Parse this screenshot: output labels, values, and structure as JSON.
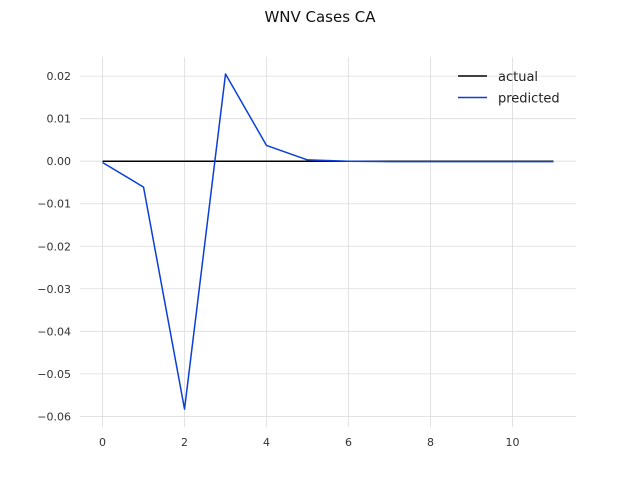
{
  "chart_data": {
    "type": "line",
    "title": "WNV Cases CA",
    "xlabel": "",
    "ylabel": "",
    "xlim": [
      -0.55,
      11.55
    ],
    "ylim": [
      -0.0625,
      0.0245
    ],
    "grid": true,
    "legend_position": "top-right",
    "x_ticks": [
      0,
      2,
      4,
      6,
      8,
      10
    ],
    "x_tick_labels": [
      "0",
      "2",
      "4",
      "6",
      "8",
      "10"
    ],
    "y_ticks": [
      0.02,
      0.01,
      0.0,
      -0.01,
      -0.02,
      -0.03,
      -0.04,
      -0.05,
      -0.06
    ],
    "y_tick_labels": [
      "0.02",
      "0.01",
      "0.00",
      "−0.01",
      "−0.02",
      "−0.03",
      "−0.04",
      "−0.05",
      "−0.06"
    ],
    "x": [
      0,
      1,
      2,
      3,
      4,
      5,
      6,
      7,
      8,
      9,
      10,
      11
    ],
    "series": [
      {
        "name": "actual",
        "color": "#000000",
        "values": [
          0,
          0,
          0,
          0,
          0,
          0,
          0,
          0,
          0,
          0,
          0,
          0
        ]
      },
      {
        "name": "predicted",
        "color": "#0a3fd8",
        "values": [
          -0.0003,
          -0.0061,
          -0.0583,
          0.0205,
          0.0037,
          0.0003,
          0.0,
          -0.0001,
          -0.0001,
          -0.0001,
          -0.0001,
          -0.0001
        ]
      }
    ]
  }
}
